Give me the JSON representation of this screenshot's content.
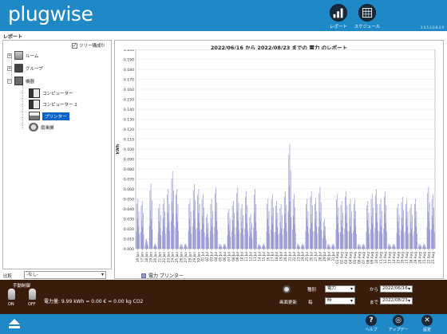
{
  "app": {
    "logo": "plugwise",
    "version": "3.4.5.3.0.8.3.9"
  },
  "header": {
    "report_label": "レポート",
    "schedule_label": "スケジュール"
  },
  "section_title": "レポート",
  "tree": {
    "toggle_label": "ツリー構成",
    "toggle_checked": true,
    "nodes": [
      {
        "label": "ルーム",
        "icon": "room-icon"
      },
      {
        "label": "グループ",
        "icon": "group-icon"
      },
      {
        "label": "機器",
        "icon": "devices-icon"
      },
      {
        "label": "コンピューター",
        "icon": "computer-icon"
      },
      {
        "label": "コンピューター 2",
        "icon": "computer-icon"
      },
      {
        "label": "プリンター",
        "icon": "printer-icon",
        "selected": true
      },
      {
        "label": "扇風機",
        "icon": "fan-icon"
      }
    ]
  },
  "compare": {
    "label": "比較",
    "value": "-なし-"
  },
  "chart_data": {
    "type": "bar",
    "title": "2022/06/16 から 2022/08/23 までの 電力 のレポート",
    "ylabel": "kWh",
    "ylim": [
      0,
      0.2
    ],
    "yticks": [
      "0.000",
      "0.010",
      "0.020",
      "0.030",
      "0.040",
      "0.050",
      "0.060",
      "0.070",
      "0.080",
      "0.090",
      "0.100",
      "0.110",
      "0.120",
      "0.130",
      "0.140",
      "0.150",
      "0.160",
      "0.170",
      "0.180",
      "0.190",
      "0.200"
    ],
    "categories": [
      "16 Jun",
      "17 Jun",
      "18 Jun",
      "19 Jun",
      "20 Jun",
      "21 Jun",
      "22 Jun",
      "23 Jun",
      "24 Jun",
      "25 Jun",
      "26 Jun",
      "27 Jun",
      "28 Jun",
      "29 Jun",
      "30 Jun",
      "01 Jul",
      "02 Jul",
      "03 Jul",
      "04 Jul",
      "05 Jul",
      "06 Jul",
      "07 Jul",
      "08 Jul",
      "09 Jul",
      "10 Jul",
      "11 Jul",
      "12 Jul",
      "13 Jul",
      "14 Jul",
      "15 Jul",
      "16 Jul",
      "17 Jul",
      "18 Jul",
      "19 Jul",
      "20 Jul",
      "21 Jul",
      "22 Jul",
      "23 Jul",
      "24 Jul",
      "25 Jul",
      "26 Jul",
      "27 Jul",
      "28 Jul",
      "29 Jul",
      "30 Jul",
      "31 Jul",
      "01 Aug",
      "02 Aug",
      "03 Aug",
      "04 Aug",
      "05 Aug",
      "06 Aug",
      "07 Aug",
      "08 Aug",
      "09 Aug",
      "10 Aug",
      "11 Aug",
      "12 Aug",
      "13 Aug",
      "14 Aug",
      "15 Aug",
      "16 Aug",
      "17 Aug",
      "18 Aug",
      "19 Aug",
      "20 Aug",
      "21 Aug",
      "22 Aug",
      "23 Aug"
    ],
    "series": [
      {
        "name": "電力 プリンター",
        "color": "#9898d0",
        "daily_peak": [
          0.05,
          0.048,
          0.01,
          0.065,
          0.005,
          0.045,
          0.05,
          0.06,
          0.078,
          0.06,
          0.005,
          0.005,
          0.05,
          0.065,
          0.06,
          0.055,
          0.035,
          0.05,
          0.062,
          0.005,
          0.005,
          0.04,
          0.048,
          0.062,
          0.045,
          0.058,
          0.035,
          0.06,
          0.005,
          0.005,
          0.05,
          0.055,
          0.048,
          0.045,
          0.058,
          0.105,
          0.055,
          0.005,
          0.005,
          0.05,
          0.058,
          0.05,
          0.062,
          0.03,
          0.005,
          0.005,
          0.055,
          0.048,
          0.058,
          0.05,
          0.05,
          0.005,
          0.005,
          0.048,
          0.055,
          0.06,
          0.05,
          0.058,
          0.005,
          0.005,
          0.045,
          0.052,
          0.05,
          0.045,
          0.05,
          0.005,
          0.005,
          0.062,
          0.055
        ]
      }
    ],
    "legend": "bottom-left",
    "grid": true
  },
  "controls": {
    "manual_title": "手動制御",
    "on_label": "ON",
    "off_label": "OFF",
    "power_text": "電力量: 9.99 kWh = 0.00 € = 0.00 kg CO2",
    "type_label": "種別",
    "type_value": "電力",
    "refresh_label": "画面更新",
    "refresh_value": "時",
    "from_label": "から",
    "from_value": "2022/06/16",
    "to_label": "まで",
    "to_value": "2022/08/23"
  },
  "footer": {
    "help_label": "ヘルプ",
    "update_label": "アップデート",
    "settings_label": "設定"
  }
}
